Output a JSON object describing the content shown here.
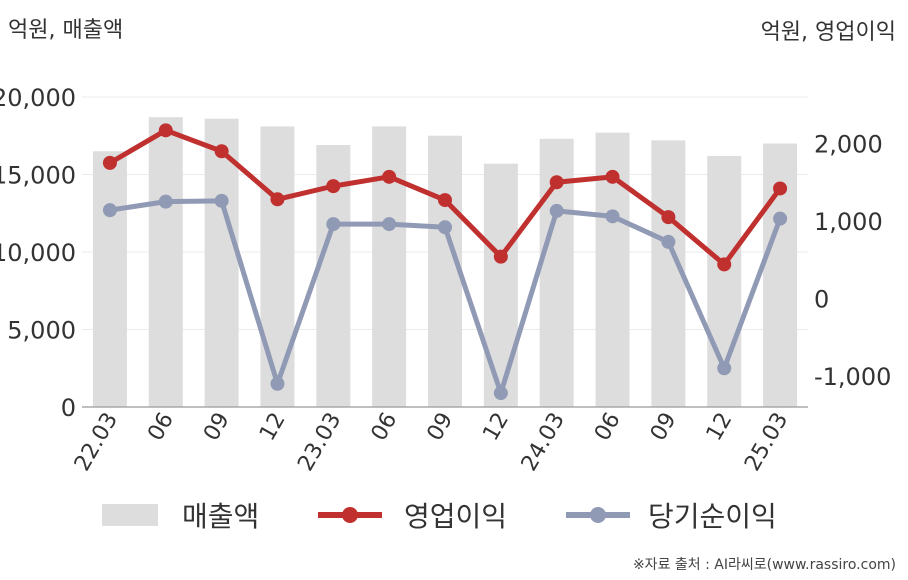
{
  "chart_data": {
    "type": "bar+line",
    "categories": [
      "22.03",
      "06",
      "09",
      "12",
      "23.03",
      "06",
      "09",
      "12",
      "24.03",
      "06",
      "09",
      "12",
      "25.03"
    ],
    "left_axis": {
      "title": "억원, 매출액",
      "ylim": [
        0,
        20000
      ],
      "ticks": [
        0,
        5000,
        10000,
        15000,
        20000
      ],
      "tick_labels": [
        "0",
        "5,000",
        "10,000",
        "15,000",
        "20,000"
      ]
    },
    "right_axis": {
      "title": "억원, 영업이익",
      "ylim": [
        -1400,
        2600
      ],
      "ticks": [
        -1000,
        0,
        1000,
        2000
      ],
      "tick_labels": [
        "-1,000",
        "0",
        "1,000",
        "2,000"
      ]
    },
    "series": [
      {
        "name": "매출액",
        "kind": "bar",
        "axis": "left",
        "color": "#dddddd",
        "values": [
          16500,
          18700,
          18600,
          18100,
          16900,
          18100,
          17500,
          15700,
          17300,
          17700,
          17200,
          16200,
          17000
        ]
      },
      {
        "name": "영업이익",
        "kind": "line",
        "axis": "right",
        "color": "#c0302f",
        "values": [
          1750,
          2170,
          1900,
          1280,
          1450,
          1570,
          1270,
          540,
          1500,
          1570,
          1050,
          440,
          1420
        ]
      },
      {
        "name": "당기순이익",
        "kind": "line",
        "axis": "right",
        "color": "#909ab5",
        "values": [
          1140,
          1250,
          1260,
          -1100,
          960,
          960,
          920,
          -1220,
          1130,
          1060,
          730,
          -900,
          1030
        ]
      }
    ],
    "grid": true,
    "legend_position": "bottom"
  },
  "source": "※자료 출처 : AI라씨로(www.rassiro.com)"
}
